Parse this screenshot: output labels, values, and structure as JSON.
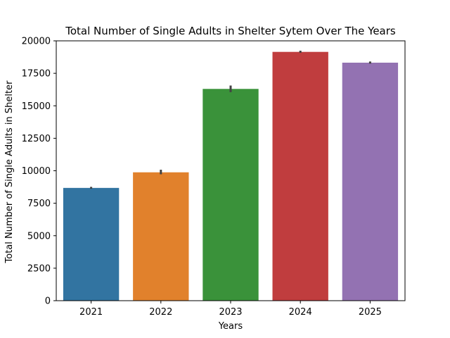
{
  "chart_data": {
    "type": "bar",
    "title": "Total Number of Single Adults in Shelter Sytem Over The Years",
    "xlabel": "Years",
    "ylabel": "Total Number of Single Adults in Shelter",
    "categories": [
      "2021",
      "2022",
      "2023",
      "2024",
      "2025"
    ],
    "values": [
      8680,
      9880,
      16300,
      19150,
      18320
    ],
    "error_bars": [
      {
        "low": 8620,
        "high": 8760
      },
      {
        "low": 9730,
        "high": 10080
      },
      {
        "low": 16050,
        "high": 16560
      },
      {
        "low": 19080,
        "high": 19240
      },
      {
        "low": 18250,
        "high": 18410
      }
    ],
    "colors": [
      "#3274a1",
      "#e1812c",
      "#3a923a",
      "#c03d3e",
      "#9372b2"
    ],
    "error_color": "#424242",
    "ylim": [
      0,
      20000
    ],
    "yticks": [
      0,
      2500,
      5000,
      7500,
      10000,
      12500,
      15000,
      17500,
      20000
    ],
    "ytick_labels": [
      "0",
      "2500",
      "5000",
      "7500",
      "10000",
      "12500",
      "15000",
      "17500",
      "20000"
    ],
    "grid": false,
    "legend": "none"
  }
}
